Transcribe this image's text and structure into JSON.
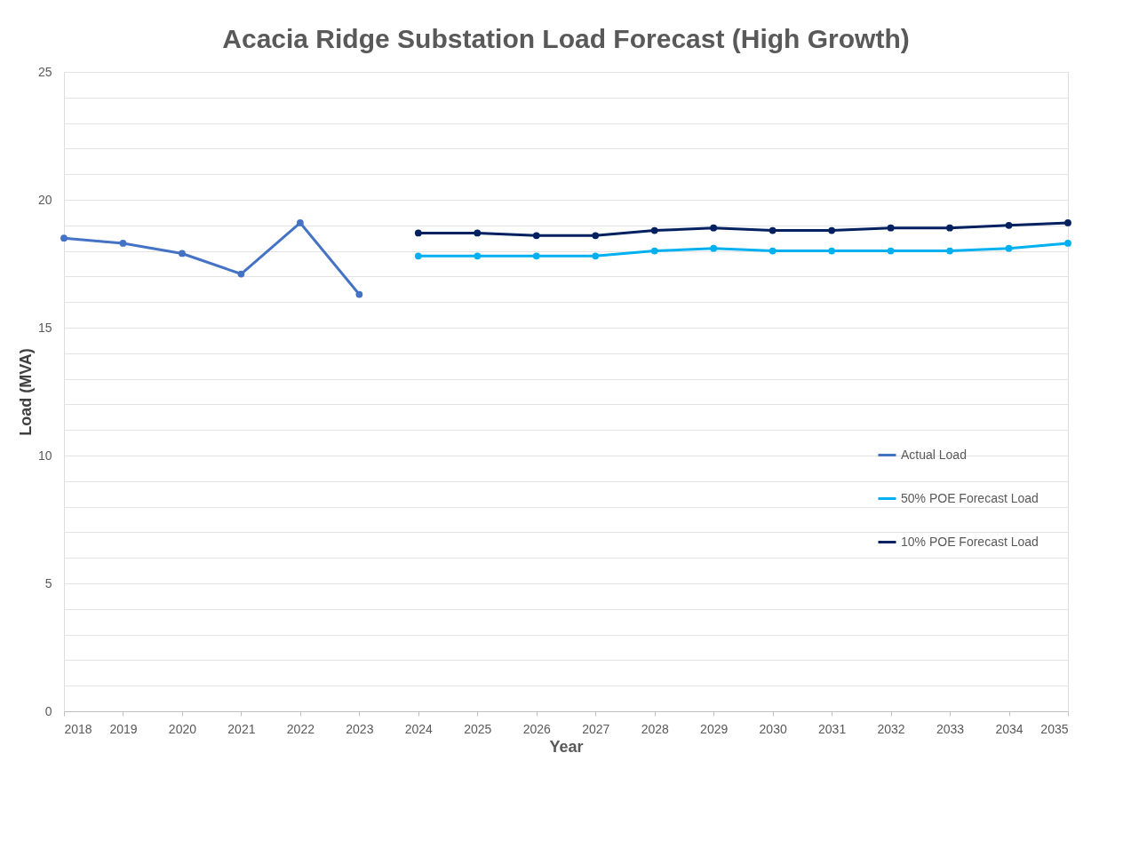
{
  "chart_data": {
    "type": "line",
    "title": "Acacia Ridge Substation Load Forecast (High Growth)",
    "xlabel": "Year",
    "ylabel": "Load (MVA)",
    "categories": [
      "2018",
      "2019",
      "2020",
      "2021",
      "2022",
      "2023",
      "2024",
      "2025",
      "2026",
      "2027",
      "2028",
      "2029",
      "2030",
      "2031",
      "2032",
      "2033",
      "2034",
      "2035"
    ],
    "series": [
      {
        "name": "Actual Load",
        "color": "#4472c4",
        "values": [
          18.5,
          18.3,
          17.9,
          17.1,
          19.1,
          16.3,
          null,
          null,
          null,
          null,
          null,
          null,
          null,
          null,
          null,
          null,
          null,
          null
        ]
      },
      {
        "name": "50% POE Forecast Load",
        "color": "#00b0f0",
        "values": [
          null,
          null,
          null,
          null,
          null,
          null,
          17.8,
          17.8,
          17.8,
          17.8,
          18.0,
          18.1,
          18.0,
          18.0,
          18.0,
          18.0,
          18.1,
          18.3
        ]
      },
      {
        "name": "10% POE Forecast Load",
        "color": "#002060",
        "values": [
          null,
          null,
          null,
          null,
          null,
          null,
          18.7,
          18.7,
          18.6,
          18.6,
          18.8,
          18.9,
          18.8,
          18.8,
          18.9,
          18.9,
          19.0,
          19.1
        ]
      }
    ],
    "ylim": [
      0,
      25
    ],
    "yticks": [
      0,
      {
        "value": 1,
        "label": null
      },
      {
        "value": 2,
        "label": null
      },
      {
        "value": 3,
        "label": null
      },
      {
        "value": 4,
        "label": null
      },
      5,
      {
        "value": 6,
        "label": null
      },
      {
        "value": 7,
        "label": null
      },
      {
        "value": 8,
        "label": null
      },
      {
        "value": 9,
        "label": null
      },
      10,
      {
        "value": 11,
        "label": null
      },
      {
        "value": 12,
        "label": null
      },
      {
        "value": 13,
        "label": null
      },
      {
        "value": 14,
        "label": null
      },
      15,
      {
        "value": 16,
        "label": null
      },
      {
        "value": 17,
        "label": null
      },
      {
        "value": 18,
        "label": null
      },
      {
        "value": 19,
        "label": null
      },
      20,
      {
        "value": 21,
        "label": null
      },
      {
        "value": 22,
        "label": null
      },
      {
        "value": 23,
        "label": null
      },
      {
        "value": 24,
        "label": null
      },
      25
    ],
    "grid": "y",
    "legend": "right",
    "marker": "circle",
    "line_style": "solid"
  }
}
